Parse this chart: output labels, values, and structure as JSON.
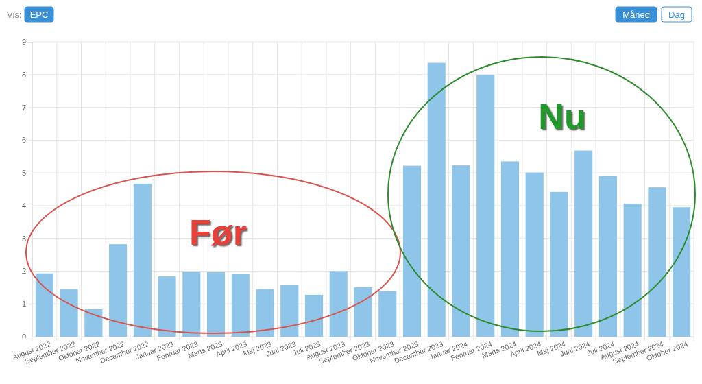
{
  "chart_data": {
    "type": "bar",
    "categories": [
      "August 2022",
      "September 2022",
      "Oktober 2022",
      "November 2022",
      "December 2022",
      "Januar 2023",
      "Februar 2023",
      "Marts 2023",
      "April 2023",
      "Maj 2023",
      "Juni 2023",
      "Juli 2023",
      "August 2023",
      "September 2023",
      "Oktober 2023",
      "November 2023",
      "December 2023",
      "Januar 2024",
      "Februar 2024",
      "Marts 2024",
      "April 2024",
      "Maj 2024",
      "Juni 2024",
      "Juli 2024",
      "August 2024",
      "September 2024",
      "Oktober 2024"
    ],
    "values": [
      1.93,
      1.45,
      0.84,
      2.82,
      4.67,
      1.84,
      1.98,
      1.97,
      1.91,
      1.45,
      1.57,
      1.28,
      2.0,
      1.51,
      1.39,
      5.22,
      8.36,
      5.23,
      7.99,
      5.35,
      5.01,
      4.42,
      5.68,
      4.91,
      4.06,
      4.56,
      3.95
    ],
    "color": "#8fc5e8",
    "ylim": [
      0,
      9
    ],
    "yticks": [
      0,
      1,
      2,
      3,
      4,
      5,
      6,
      7,
      8,
      9
    ],
    "grid": true,
    "annotations": [
      "Vis:",
      "EPC",
      "Måned",
      "Dag",
      "Før",
      "Nu"
    ]
  }
}
